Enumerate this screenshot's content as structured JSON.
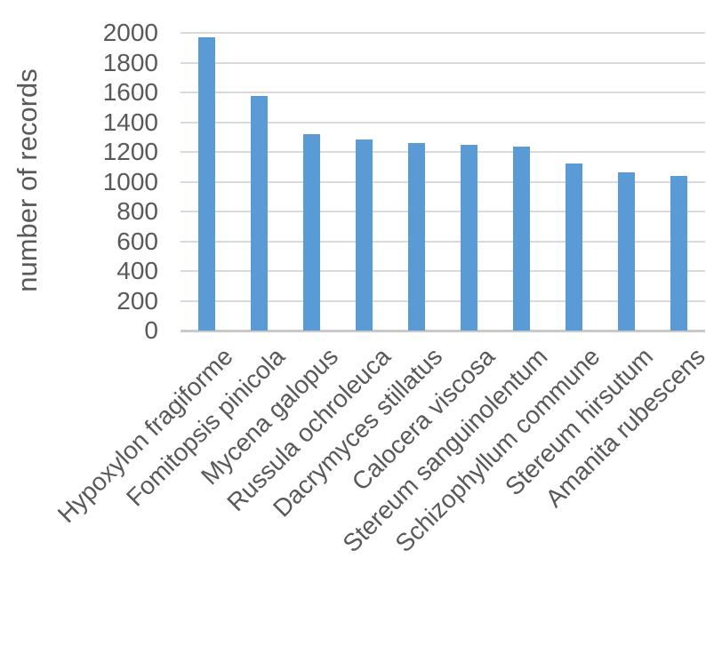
{
  "chart_data": {
    "type": "bar",
    "title": "",
    "ylabel": "number of records",
    "xlabel": "",
    "categories": [
      "Hypoxylon fragiforme",
      "Fomitopsis pinicola",
      "Mycena galopus",
      "Russula ochroleuca",
      "Dacrymyces stillatus",
      "Calocera viscosa",
      "Stereum sanguinolentum",
      "Schizophyllum commune",
      "Stereum hirsutum",
      "Amanita rubescens"
    ],
    "values": [
      1970,
      1575,
      1320,
      1285,
      1260,
      1245,
      1235,
      1125,
      1065,
      1040
    ],
    "ylim": [
      0,
      2000
    ],
    "ytick_step": 200,
    "ytick_labels": [
      "0",
      "200",
      "400",
      "600",
      "800",
      "1000",
      "1200",
      "1400",
      "1600",
      "1800",
      "2000"
    ],
    "grid": "horizontal",
    "legend": "none",
    "category_label_rotation_deg": 45,
    "colors": {
      "bar": "#5B9BD5",
      "gridline": "#D9D9D9",
      "axis_line": "#C9C9C9",
      "text": "#595959",
      "background": "#FFFFFF"
    }
  }
}
